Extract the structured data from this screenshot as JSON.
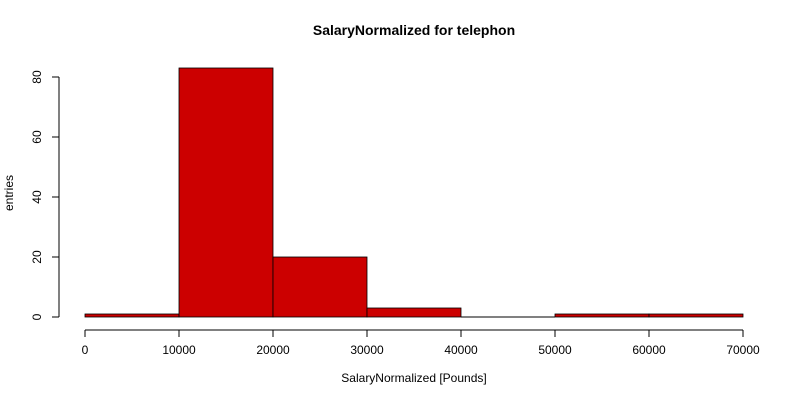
{
  "chart_data": {
    "type": "bar",
    "title": "SalaryNormalized for telephon",
    "xlabel": "SalaryNormalized [Pounds]",
    "ylabel": "entries",
    "bin_edges": [
      0,
      10000,
      20000,
      30000,
      40000,
      50000,
      60000,
      70000
    ],
    "values": [
      1,
      83,
      20,
      3,
      0,
      1,
      1
    ],
    "xlim": [
      0,
      70000
    ],
    "ylim": [
      0,
      80
    ],
    "x_ticks": [
      0,
      10000,
      20000,
      30000,
      40000,
      50000,
      60000,
      70000
    ],
    "y_ticks": [
      0,
      20,
      40,
      60,
      80
    ],
    "bar_color": "#cc0000",
    "grid": false
  }
}
